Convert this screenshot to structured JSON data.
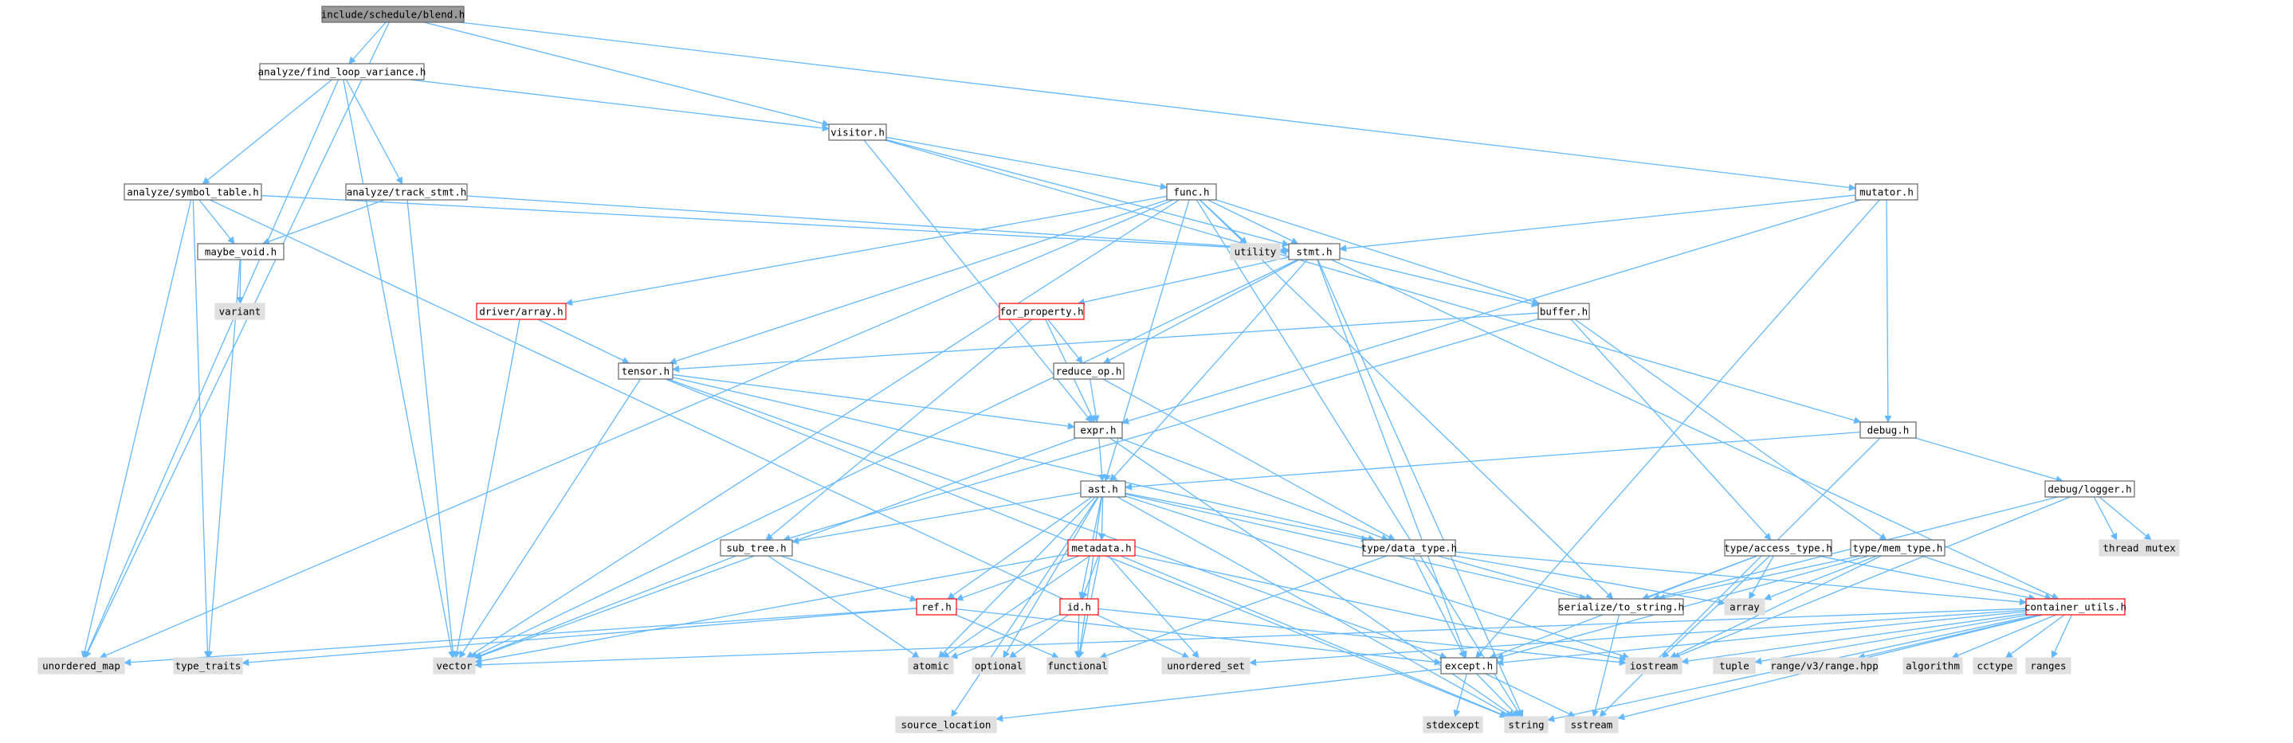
{
  "title": "include/schedule/blend.h",
  "colors": {
    "edge": "#63b8ff",
    "node_border": "#666666",
    "focus_fill": "#999999",
    "system_fill": "#e0e0e0",
    "truncated_border": "#ff0000"
  },
  "nodes": [
    {
      "id": "blend",
      "label": "include/schedule/blend.h",
      "kind": "focus"
    },
    {
      "id": "flv",
      "label": "analyze/find_loop_variance.h",
      "kind": "normal"
    },
    {
      "id": "visitor",
      "label": "visitor.h",
      "kind": "normal"
    },
    {
      "id": "symtab",
      "label": "analyze/symbol_table.h",
      "kind": "normal"
    },
    {
      "id": "trackstmt",
      "label": "analyze/track_stmt.h",
      "kind": "normal"
    },
    {
      "id": "func",
      "label": "func.h",
      "kind": "normal"
    },
    {
      "id": "mutator",
      "label": "mutator.h",
      "kind": "normal"
    },
    {
      "id": "maybevoid",
      "label": "maybe_void.h",
      "kind": "normal"
    },
    {
      "id": "utility",
      "label": "utility",
      "kind": "system"
    },
    {
      "id": "stmt",
      "label": "stmt.h",
      "kind": "normal"
    },
    {
      "id": "variant",
      "label": "variant",
      "kind": "system"
    },
    {
      "id": "driverarray",
      "label": "driver/array.h",
      "kind": "truncated"
    },
    {
      "id": "forprop",
      "label": "for_property.h",
      "kind": "truncated"
    },
    {
      "id": "buffer",
      "label": "buffer.h",
      "kind": "normal"
    },
    {
      "id": "tensor",
      "label": "tensor.h",
      "kind": "normal"
    },
    {
      "id": "reduceop",
      "label": "reduce_op.h",
      "kind": "normal"
    },
    {
      "id": "expr",
      "label": "expr.h",
      "kind": "normal"
    },
    {
      "id": "debug",
      "label": "debug.h",
      "kind": "normal"
    },
    {
      "id": "ast",
      "label": "ast.h",
      "kind": "normal"
    },
    {
      "id": "debuglogger",
      "label": "debug/logger.h",
      "kind": "normal"
    },
    {
      "id": "thread",
      "label": "thread",
      "kind": "system"
    },
    {
      "id": "mutex",
      "label": "mutex",
      "kind": "system"
    },
    {
      "id": "metadata",
      "label": "metadata.h",
      "kind": "truncated"
    },
    {
      "id": "subtree",
      "label": "sub_tree.h",
      "kind": "normal"
    },
    {
      "id": "datatype",
      "label": "type/data_type.h",
      "kind": "normal"
    },
    {
      "id": "accesstype",
      "label": "type/access_type.h",
      "kind": "normal"
    },
    {
      "id": "memtype",
      "label": "type/mem_type.h",
      "kind": "normal"
    },
    {
      "id": "ref",
      "label": "ref.h",
      "kind": "truncated"
    },
    {
      "id": "idh",
      "label": "id.h",
      "kind": "truncated"
    },
    {
      "id": "tostring",
      "label": "serialize/to_string.h",
      "kind": "normal"
    },
    {
      "id": "array",
      "label": "array",
      "kind": "system"
    },
    {
      "id": "contutils",
      "label": "container_utils.h",
      "kind": "truncated"
    },
    {
      "id": "unordered_map",
      "label": "unordered_map",
      "kind": "system"
    },
    {
      "id": "type_traits",
      "label": "type_traits",
      "kind": "system"
    },
    {
      "id": "vector",
      "label": "vector",
      "kind": "system"
    },
    {
      "id": "atomic",
      "label": "atomic",
      "kind": "system"
    },
    {
      "id": "optional",
      "label": "optional",
      "kind": "system"
    },
    {
      "id": "functional",
      "label": "functional",
      "kind": "system"
    },
    {
      "id": "unordered_set",
      "label": "unordered_set",
      "kind": "system"
    },
    {
      "id": "except",
      "label": "except.h",
      "kind": "normal"
    },
    {
      "id": "iostream",
      "label": "iostream",
      "kind": "system"
    },
    {
      "id": "tuple",
      "label": "tuple",
      "kind": "system"
    },
    {
      "id": "rangev3",
      "label": "range/v3/range.hpp",
      "kind": "system"
    },
    {
      "id": "algorithm",
      "label": "algorithm",
      "kind": "system"
    },
    {
      "id": "cctype",
      "label": "cctype",
      "kind": "system"
    },
    {
      "id": "ranges",
      "label": "ranges",
      "kind": "system"
    },
    {
      "id": "source_location",
      "label": "source_location",
      "kind": "system"
    },
    {
      "id": "stdexcept",
      "label": "stdexcept",
      "kind": "system"
    },
    {
      "id": "string",
      "label": "string",
      "kind": "system"
    },
    {
      "id": "sstream",
      "label": "sstream",
      "kind": "system"
    }
  ],
  "edges": [
    [
      "blend",
      "flv"
    ],
    [
      "blend",
      "visitor"
    ],
    [
      "blend",
      "mutator"
    ],
    [
      "blend",
      "unordered_map"
    ],
    [
      "flv",
      "visitor"
    ],
    [
      "flv",
      "symtab"
    ],
    [
      "flv",
      "trackstmt"
    ],
    [
      "flv",
      "unordered_map"
    ],
    [
      "flv",
      "vector"
    ],
    [
      "visitor",
      "func"
    ],
    [
      "visitor",
      "stmt"
    ],
    [
      "visitor",
      "expr"
    ],
    [
      "visitor",
      "debug"
    ],
    [
      "symtab",
      "stmt"
    ],
    [
      "symtab",
      "maybevoid"
    ],
    [
      "symtab",
      "unordered_map"
    ],
    [
      "symtab",
      "type_traits"
    ],
    [
      "symtab",
      "unordered_set"
    ],
    [
      "trackstmt",
      "stmt"
    ],
    [
      "trackstmt",
      "maybevoid"
    ],
    [
      "trackstmt",
      "vector"
    ],
    [
      "maybevoid",
      "variant"
    ],
    [
      "maybevoid",
      "type_traits"
    ],
    [
      "func",
      "utility"
    ],
    [
      "func",
      "stmt"
    ],
    [
      "func",
      "driverarray"
    ],
    [
      "func",
      "buffer"
    ],
    [
      "func",
      "tensor"
    ],
    [
      "func",
      "ast"
    ],
    [
      "func",
      "unordered_map"
    ],
    [
      "func",
      "vector"
    ],
    [
      "func",
      "tostring"
    ],
    [
      "func",
      "string"
    ],
    [
      "mutator",
      "stmt"
    ],
    [
      "mutator",
      "expr"
    ],
    [
      "mutator",
      "debug"
    ],
    [
      "mutator",
      "except"
    ],
    [
      "stmt",
      "utility"
    ],
    [
      "stmt",
      "forprop"
    ],
    [
      "stmt",
      "buffer"
    ],
    [
      "stmt",
      "reduceop"
    ],
    [
      "stmt",
      "ast"
    ],
    [
      "stmt",
      "vector"
    ],
    [
      "stmt",
      "except"
    ],
    [
      "stmt",
      "string"
    ],
    [
      "stmt",
      "contutils"
    ],
    [
      "driverarray",
      "tensor"
    ],
    [
      "driverarray",
      "vector"
    ],
    [
      "forprop",
      "reduceop"
    ],
    [
      "forprop",
      "expr"
    ],
    [
      "forprop",
      "subtree"
    ],
    [
      "buffer",
      "tensor"
    ],
    [
      "buffer",
      "subtree"
    ],
    [
      "buffer",
      "accesstype"
    ],
    [
      "buffer",
      "memtype"
    ],
    [
      "tensor",
      "expr"
    ],
    [
      "tensor",
      "datatype"
    ],
    [
      "tensor",
      "vector"
    ],
    [
      "tensor",
      "except"
    ],
    [
      "tensor",
      "string"
    ],
    [
      "reduceop",
      "expr"
    ],
    [
      "reduceop",
      "datatype"
    ],
    [
      "expr",
      "ast"
    ],
    [
      "expr",
      "datatype"
    ],
    [
      "expr",
      "vector"
    ],
    [
      "expr",
      "string"
    ],
    [
      "debug",
      "ast"
    ],
    [
      "debug",
      "debuglogger"
    ],
    [
      "debug",
      "sstream"
    ],
    [
      "debuglogger",
      "thread"
    ],
    [
      "debuglogger",
      "mutex"
    ],
    [
      "debuglogger",
      "iostream"
    ],
    [
      "debuglogger",
      "tostring"
    ],
    [
      "ast",
      "metadata"
    ],
    [
      "ast",
      "subtree"
    ],
    [
      "ast",
      "datatype"
    ],
    [
      "ast",
      "ref"
    ],
    [
      "ast",
      "idh"
    ],
    [
      "ast",
      "tostring"
    ],
    [
      "ast",
      "atomic"
    ],
    [
      "ast",
      "optional"
    ],
    [
      "ast",
      "functional"
    ],
    [
      "ast",
      "source_location"
    ],
    [
      "ast",
      "iostream"
    ],
    [
      "ast",
      "string"
    ],
    [
      "metadata",
      "ref"
    ],
    [
      "metadata",
      "idh"
    ],
    [
      "metadata",
      "vector"
    ],
    [
      "metadata",
      "functional"
    ],
    [
      "metadata",
      "unordered_set"
    ],
    [
      "metadata",
      "iostream"
    ],
    [
      "metadata",
      "string"
    ],
    [
      "metadata",
      "atomic"
    ],
    [
      "subtree",
      "ref"
    ],
    [
      "subtree",
      "vector"
    ],
    [
      "subtree",
      "atomic"
    ],
    [
      "datatype",
      "array"
    ],
    [
      "datatype",
      "contutils"
    ],
    [
      "datatype",
      "except"
    ],
    [
      "datatype",
      "functional"
    ],
    [
      "datatype",
      "tostring"
    ],
    [
      "accesstype",
      "array"
    ],
    [
      "accesstype",
      "contutils"
    ],
    [
      "accesstype",
      "except"
    ],
    [
      "accesstype",
      "tostring"
    ],
    [
      "accesstype",
      "iostream"
    ],
    [
      "memtype",
      "array"
    ],
    [
      "memtype",
      "contutils"
    ],
    [
      "memtype",
      "except"
    ],
    [
      "memtype",
      "tostring"
    ],
    [
      "memtype",
      "iostream"
    ],
    [
      "ref",
      "except"
    ],
    [
      "ref",
      "type_traits"
    ],
    [
      "ref",
      "functional"
    ],
    [
      "ref",
      "unordered_map"
    ],
    [
      "idh",
      "functional"
    ],
    [
      "idh",
      "optional"
    ],
    [
      "idh",
      "iostream"
    ],
    [
      "idh",
      "atomic"
    ],
    [
      "tostring",
      "sstream"
    ],
    [
      "contutils",
      "vector"
    ],
    [
      "contutils",
      "except"
    ],
    [
      "contutils",
      "unordered_set"
    ],
    [
      "contutils",
      "iostream"
    ],
    [
      "contutils",
      "tuple"
    ],
    [
      "contutils",
      "rangev3"
    ],
    [
      "contutils",
      "algorithm"
    ],
    [
      "contutils",
      "cctype"
    ],
    [
      "contutils",
      "ranges"
    ],
    [
      "contutils",
      "string"
    ],
    [
      "contutils",
      "sstream"
    ],
    [
      "except",
      "source_location"
    ],
    [
      "except",
      "stdexcept"
    ],
    [
      "except",
      "string"
    ],
    [
      "except",
      "sstream"
    ]
  ]
}
